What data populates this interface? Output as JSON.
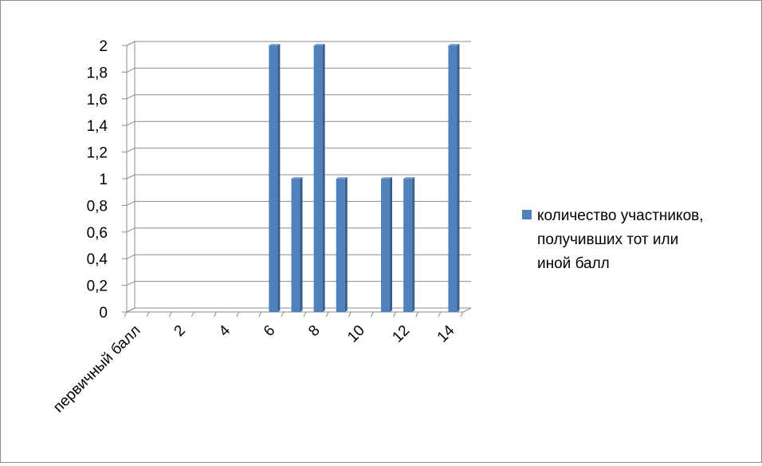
{
  "chart_data": {
    "type": "bar",
    "title": "",
    "xlabel": "",
    "ylabel": "",
    "categories": [
      "первичный балл",
      "",
      "2",
      "",
      "4",
      "",
      "6",
      "",
      "8",
      "",
      "10",
      "",
      "12",
      "",
      "14"
    ],
    "series": [
      {
        "name": "количество участников, получивших тот или иной балл",
        "values": [
          0,
          0,
          0,
          0,
          0,
          0,
          2,
          1,
          2,
          1,
          0,
          1,
          1,
          0,
          2
        ]
      }
    ],
    "ylim": [
      0,
      2
    ],
    "y_ticks": [
      "0",
      "0,2",
      "0,4",
      "0,6",
      "0,8",
      "1",
      "1,2",
      "1,4",
      "1,6",
      "1,8",
      "2"
    ],
    "legend_lines": [
      "количество участников,",
      "получивших тот или",
      "иной балл"
    ],
    "legend_position": "right",
    "grid": true,
    "colors": {
      "bar_front": "#4f81bd",
      "bar_side": "#385d8a",
      "bar_top": "#7ea3d3",
      "grid": "#8c8c8c",
      "text": "#000000"
    }
  }
}
